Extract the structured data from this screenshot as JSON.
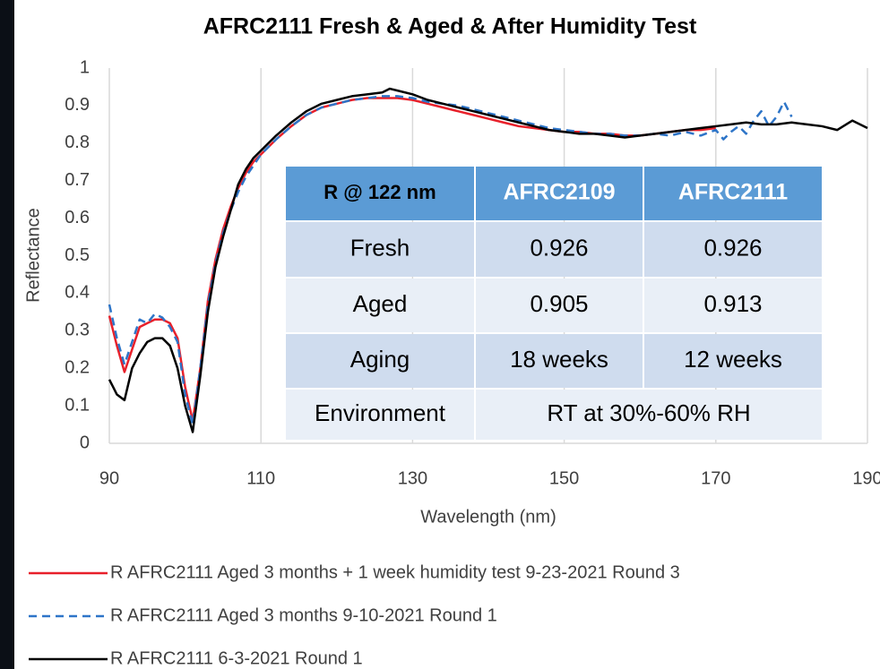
{
  "chart_data": {
    "type": "line",
    "title": "AFRC2111 Fresh & Aged & After Humidity Test",
    "xlabel": "Wavelength (nm)",
    "ylabel": "Reflectance",
    "xlim": [
      90,
      190
    ],
    "xticks": [
      90,
      110,
      130,
      150,
      170,
      190
    ],
    "ylim": [
      0,
      1
    ],
    "yticks": [
      0,
      0.1,
      0.2,
      0.3,
      0.4,
      0.5,
      0.6,
      0.7,
      0.8,
      0.9,
      1
    ],
    "grid": "x",
    "legend": "bottom",
    "series": [
      {
        "name": "R AFRC2111 Aged 3 months + 1 week humidity test 9-23-2021 Round 3",
        "color": "#e8202a",
        "dash": false,
        "x": [
          90,
          91,
          92,
          93,
          94,
          95,
          96,
          97,
          98,
          99,
          100,
          101,
          102,
          103,
          104,
          105,
          106,
          107,
          108,
          109,
          110,
          112,
          114,
          116,
          118,
          120,
          122,
          124,
          126,
          128,
          130,
          132,
          134,
          136,
          138,
          140,
          142,
          144,
          146,
          148,
          150,
          152,
          154,
          156,
          158,
          160,
          162,
          164,
          166,
          168,
          170
        ],
        "values": [
          0.34,
          0.26,
          0.19,
          0.25,
          0.31,
          0.32,
          0.33,
          0.33,
          0.32,
          0.28,
          0.15,
          0.06,
          0.2,
          0.38,
          0.49,
          0.57,
          0.63,
          0.68,
          0.72,
          0.75,
          0.77,
          0.81,
          0.845,
          0.875,
          0.895,
          0.905,
          0.915,
          0.92,
          0.92,
          0.92,
          0.915,
          0.905,
          0.895,
          0.885,
          0.875,
          0.865,
          0.855,
          0.845,
          0.84,
          0.835,
          0.83,
          0.83,
          0.825,
          0.825,
          0.82,
          0.82,
          0.825,
          0.83,
          0.835,
          0.835,
          0.84
        ]
      },
      {
        "name": "R AFRC2111 Aged 3 months 9-10-2021 Round 1",
        "color": "#2e75c8",
        "dash": true,
        "x": [
          90,
          91,
          92,
          93,
          94,
          95,
          96,
          97,
          98,
          99,
          100,
          101,
          102,
          103,
          104,
          105,
          106,
          107,
          108,
          109,
          110,
          112,
          114,
          116,
          118,
          120,
          122,
          124,
          126,
          128,
          130,
          132,
          134,
          136,
          138,
          140,
          142,
          144,
          146,
          148,
          150,
          152,
          154,
          156,
          158,
          160,
          162,
          164,
          166,
          168,
          170,
          171,
          172,
          173,
          174,
          175,
          176,
          177,
          178,
          179,
          180
        ],
        "values": [
          0.37,
          0.28,
          0.21,
          0.27,
          0.33,
          0.32,
          0.345,
          0.335,
          0.31,
          0.27,
          0.13,
          0.05,
          0.2,
          0.37,
          0.48,
          0.56,
          0.62,
          0.67,
          0.71,
          0.74,
          0.77,
          0.81,
          0.845,
          0.875,
          0.895,
          0.905,
          0.915,
          0.92,
          0.925,
          0.925,
          0.92,
          0.91,
          0.905,
          0.9,
          0.89,
          0.88,
          0.87,
          0.86,
          0.85,
          0.84,
          0.835,
          0.83,
          0.825,
          0.825,
          0.82,
          0.82,
          0.825,
          0.82,
          0.83,
          0.82,
          0.835,
          0.81,
          0.83,
          0.845,
          0.825,
          0.86,
          0.885,
          0.845,
          0.87,
          0.91,
          0.87
        ]
      },
      {
        "name": "R AFRC2111 6-3-2021 Round 1",
        "color": "#000000",
        "dash": false,
        "x": [
          90,
          91,
          92,
          93,
          94,
          95,
          96,
          97,
          98,
          99,
          100,
          101,
          102,
          103,
          104,
          105,
          106,
          107,
          108,
          109,
          110,
          112,
          114,
          116,
          118,
          120,
          122,
          124,
          126,
          127,
          128,
          130,
          132,
          134,
          136,
          138,
          140,
          142,
          144,
          146,
          148,
          150,
          152,
          154,
          156,
          158,
          160,
          162,
          164,
          166,
          168,
          170,
          172,
          174,
          176,
          178,
          180,
          182,
          184,
          186,
          188,
          190
        ],
        "values": [
          0.17,
          0.13,
          0.115,
          0.2,
          0.24,
          0.27,
          0.28,
          0.28,
          0.26,
          0.2,
          0.1,
          0.03,
          0.18,
          0.35,
          0.47,
          0.55,
          0.62,
          0.69,
          0.73,
          0.76,
          0.78,
          0.82,
          0.855,
          0.885,
          0.905,
          0.915,
          0.925,
          0.93,
          0.935,
          0.945,
          0.94,
          0.93,
          0.915,
          0.905,
          0.895,
          0.885,
          0.875,
          0.865,
          0.855,
          0.845,
          0.835,
          0.83,
          0.825,
          0.825,
          0.82,
          0.815,
          0.82,
          0.825,
          0.83,
          0.835,
          0.84,
          0.845,
          0.85,
          0.855,
          0.85,
          0.85,
          0.855,
          0.85,
          0.845,
          0.835,
          0.86,
          0.84
        ]
      }
    ]
  },
  "table": {
    "header": [
      "R @ 122 nm",
      "AFRC2109",
      "AFRC2111"
    ],
    "rows": [
      [
        "Fresh",
        "0.926",
        "0.926"
      ],
      [
        "Aged",
        "0.905",
        "0.913"
      ],
      [
        "Aging",
        "18 weeks",
        "12 weeks"
      ],
      [
        "Environment",
        "RT at 30%-60% RH"
      ]
    ]
  }
}
